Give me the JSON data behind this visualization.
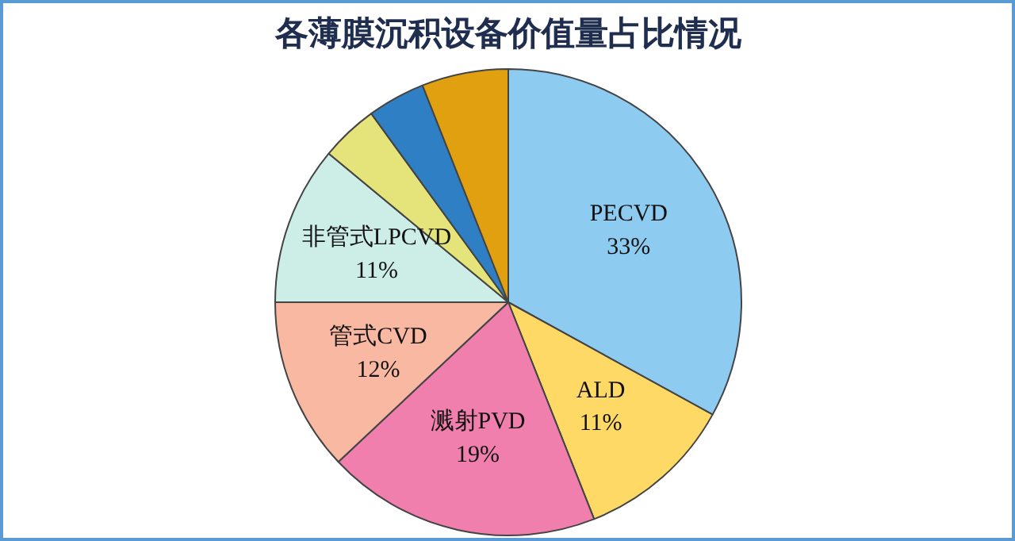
{
  "chart_data": {
    "type": "pie",
    "title": "各薄膜沉积设备价值量占比情况",
    "categories": [
      "PECVD",
      "ALD",
      "溅射PVD",
      "管式CVD",
      "非管式LPCVD",
      null,
      null,
      null
    ],
    "values": [
      33,
      11,
      19,
      12,
      11,
      4,
      4,
      6
    ],
    "value_labels": [
      "33%",
      "11%",
      "19%",
      "12%",
      "11%",
      null,
      null,
      null
    ],
    "colors": [
      "#8ecbf0",
      "#ffd966",
      "#f07fae",
      "#f9b8a2",
      "#cdeee6",
      "#e4e47a",
      "#2f7fc4",
      "#e0a010"
    ]
  }
}
